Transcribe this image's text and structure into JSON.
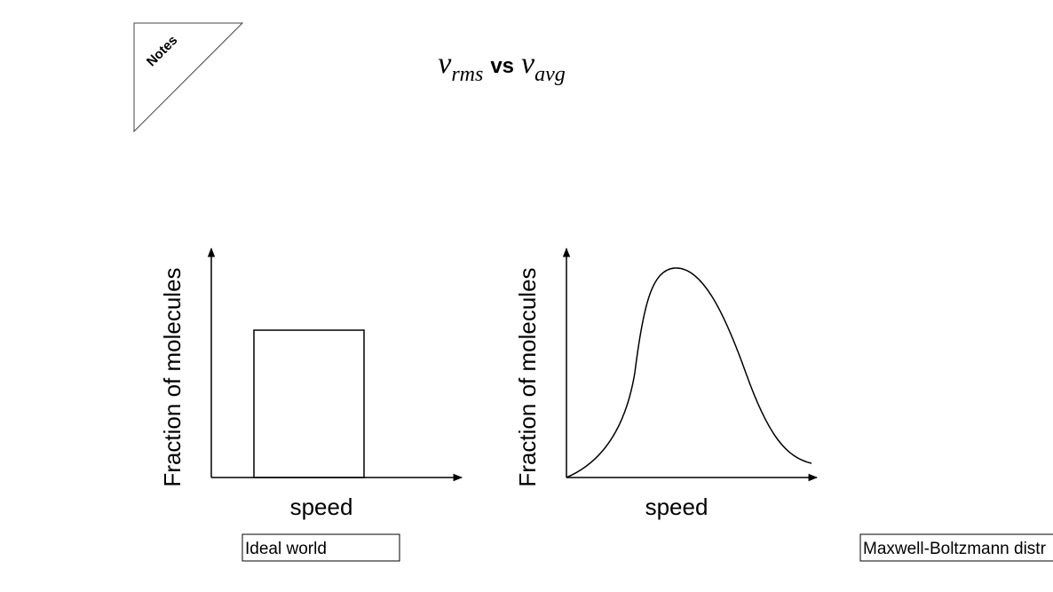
{
  "notes_tab": {
    "label": "Notes"
  },
  "title": {
    "symbol_1": "v",
    "subscript_1": "rms",
    "connector": "vs",
    "symbol_2": "v",
    "subscript_2": "avg"
  },
  "graphs": [
    {
      "y_label": "Fraction of molecules",
      "x_label": "speed",
      "caption": "Ideal world"
    },
    {
      "y_label": "Fraction of molecules",
      "x_label": "speed",
      "caption": "Maxwell-Boltzmann distr"
    }
  ]
}
